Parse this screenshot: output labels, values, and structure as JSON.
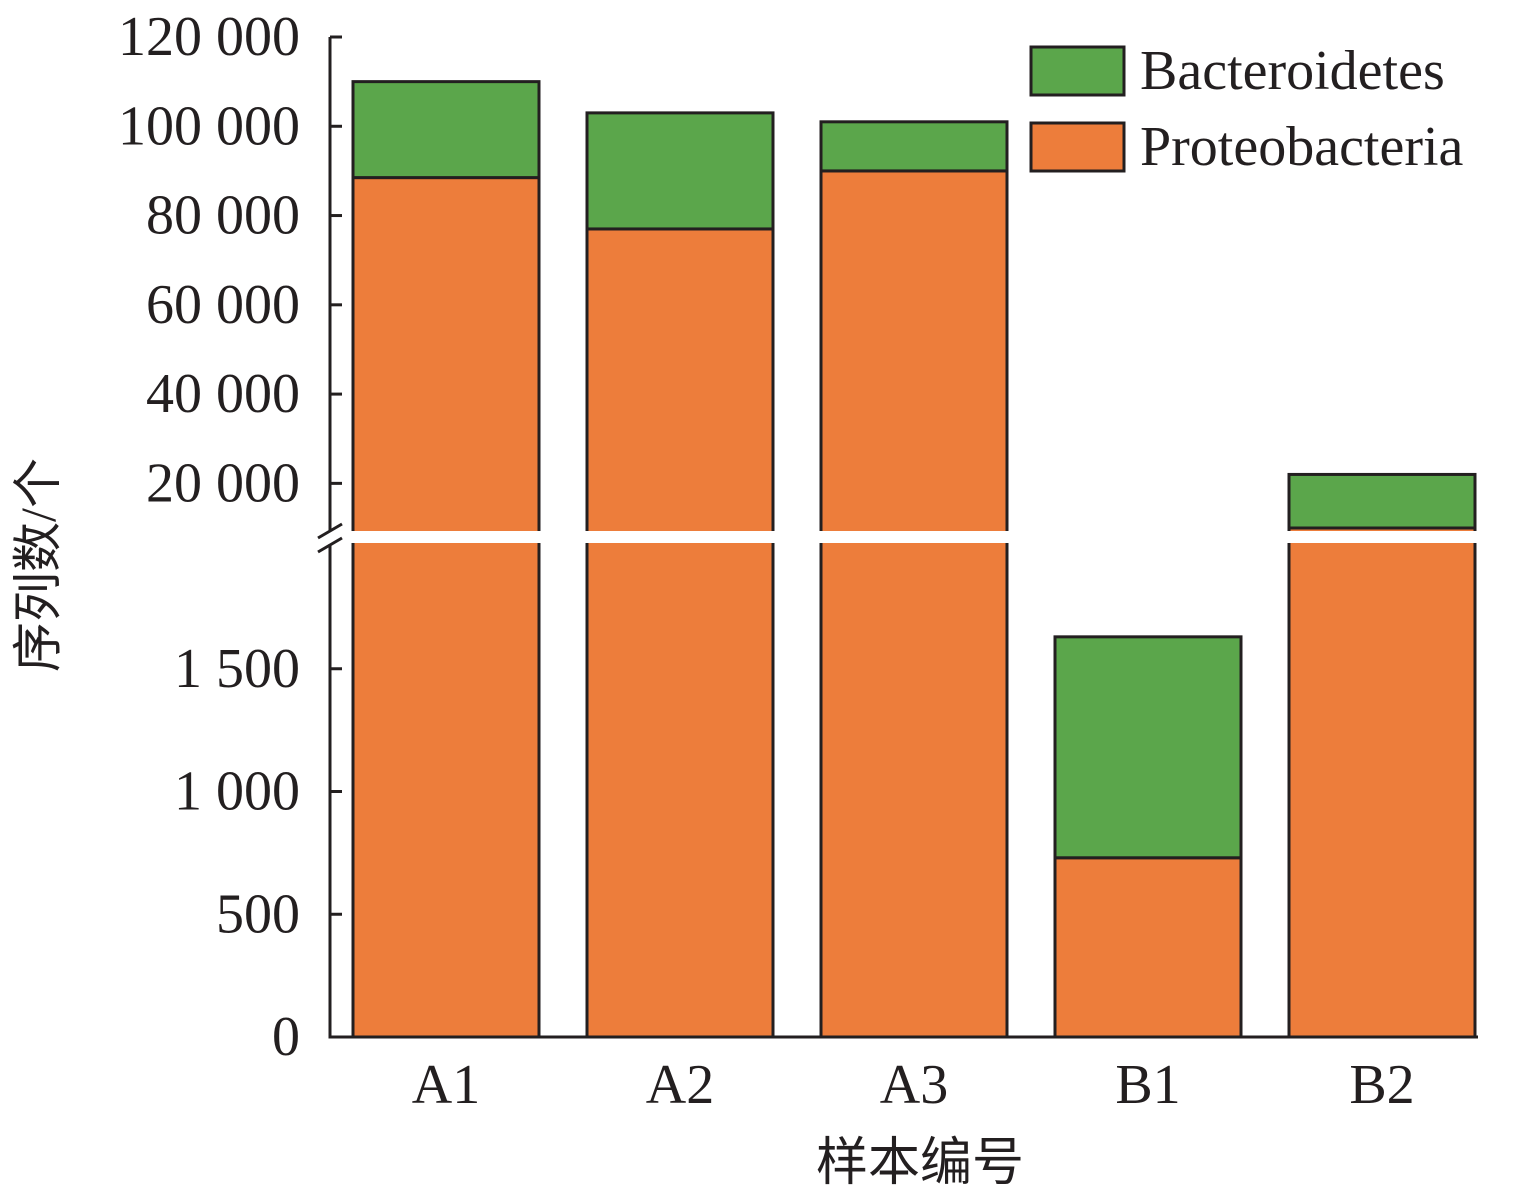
{
  "chart_data": {
    "type": "bar",
    "stacked": true,
    "broken_y_axis": true,
    "categories": [
      "A1",
      "A2",
      "A3",
      "B1",
      "B2"
    ],
    "series": [
      {
        "name": "Proteobacteria",
        "color": "#ED7D3B",
        "values": [
          88500,
          77000,
          90000,
          730,
          8000
        ]
      },
      {
        "name": "Bacteroidetes",
        "color": "#5BA64B",
        "values": [
          21500,
          26000,
          11000,
          900,
          14000
        ]
      }
    ],
    "totals": [
      110000,
      103000,
      101000,
      1630,
      22000
    ],
    "xlabel": "样本编号",
    "ylabel": "序列数/个",
    "lower_segment": {
      "ylim": [
        0,
        2000
      ],
      "ticks": [
        0,
        500,
        1000,
        1500
      ],
      "tick_labels": [
        "0",
        "500",
        "1 000",
        "1 500"
      ]
    },
    "upper_segment": {
      "ylim": [
        10000,
        120000
      ],
      "ticks": [
        20000,
        40000,
        60000,
        80000,
        100000,
        120000
      ],
      "tick_labels": [
        "20 000",
        "40 000",
        "60 000",
        "80 000",
        "100 000",
        "120 000"
      ]
    },
    "legend": {
      "placement": "top-right",
      "entries": [
        "Bacteroidetes",
        "Proteobacteria"
      ]
    },
    "grid": false
  }
}
